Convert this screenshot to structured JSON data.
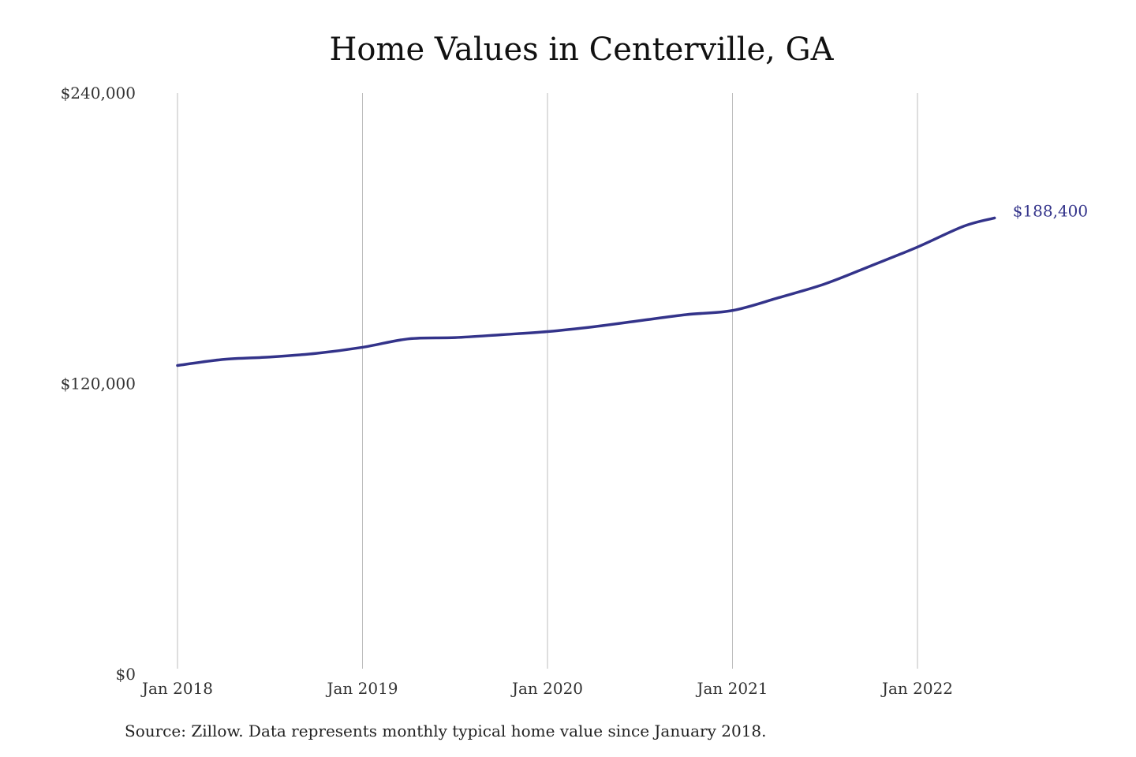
{
  "chart_data": {
    "type": "line",
    "title": "Home Values in Centerville, GA",
    "source_note": "Source: Zillow. Data represents monthly typical home value since January 2018.",
    "ylim": [
      0,
      240000
    ],
    "y_ticks": [
      {
        "value": 0,
        "label": "$0"
      },
      {
        "value": 120000,
        "label": "$120,000"
      },
      {
        "value": 240000,
        "label": "$240,000"
      }
    ],
    "x_ticks": [
      {
        "value": "2018-01",
        "label": "Jan 2018"
      },
      {
        "value": "2019-01",
        "label": "Jan 2019"
      },
      {
        "value": "2020-01",
        "label": "Jan 2020"
      },
      {
        "value": "2021-01",
        "label": "Jan 2021"
      },
      {
        "value": "2022-01",
        "label": "Jan 2022"
      }
    ],
    "grid": "vertical",
    "line_color": "#33338a",
    "series": [
      {
        "x": [
          "2018-01",
          "2018-04",
          "2018-07",
          "2018-10",
          "2019-01",
          "2019-04",
          "2019-07",
          "2019-10",
          "2020-01",
          "2020-04",
          "2020-07",
          "2020-10",
          "2021-01",
          "2021-04",
          "2021-07",
          "2021-10",
          "2022-01",
          "2022-04",
          "2022-06"
        ],
        "values": [
          127500,
          130000,
          131000,
          132500,
          135000,
          138500,
          139000,
          140200,
          141500,
          143500,
          146000,
          148500,
          150200,
          155500,
          161200,
          168700,
          176400,
          185000,
          188400
        ]
      }
    ],
    "end_label": "$188,400"
  }
}
